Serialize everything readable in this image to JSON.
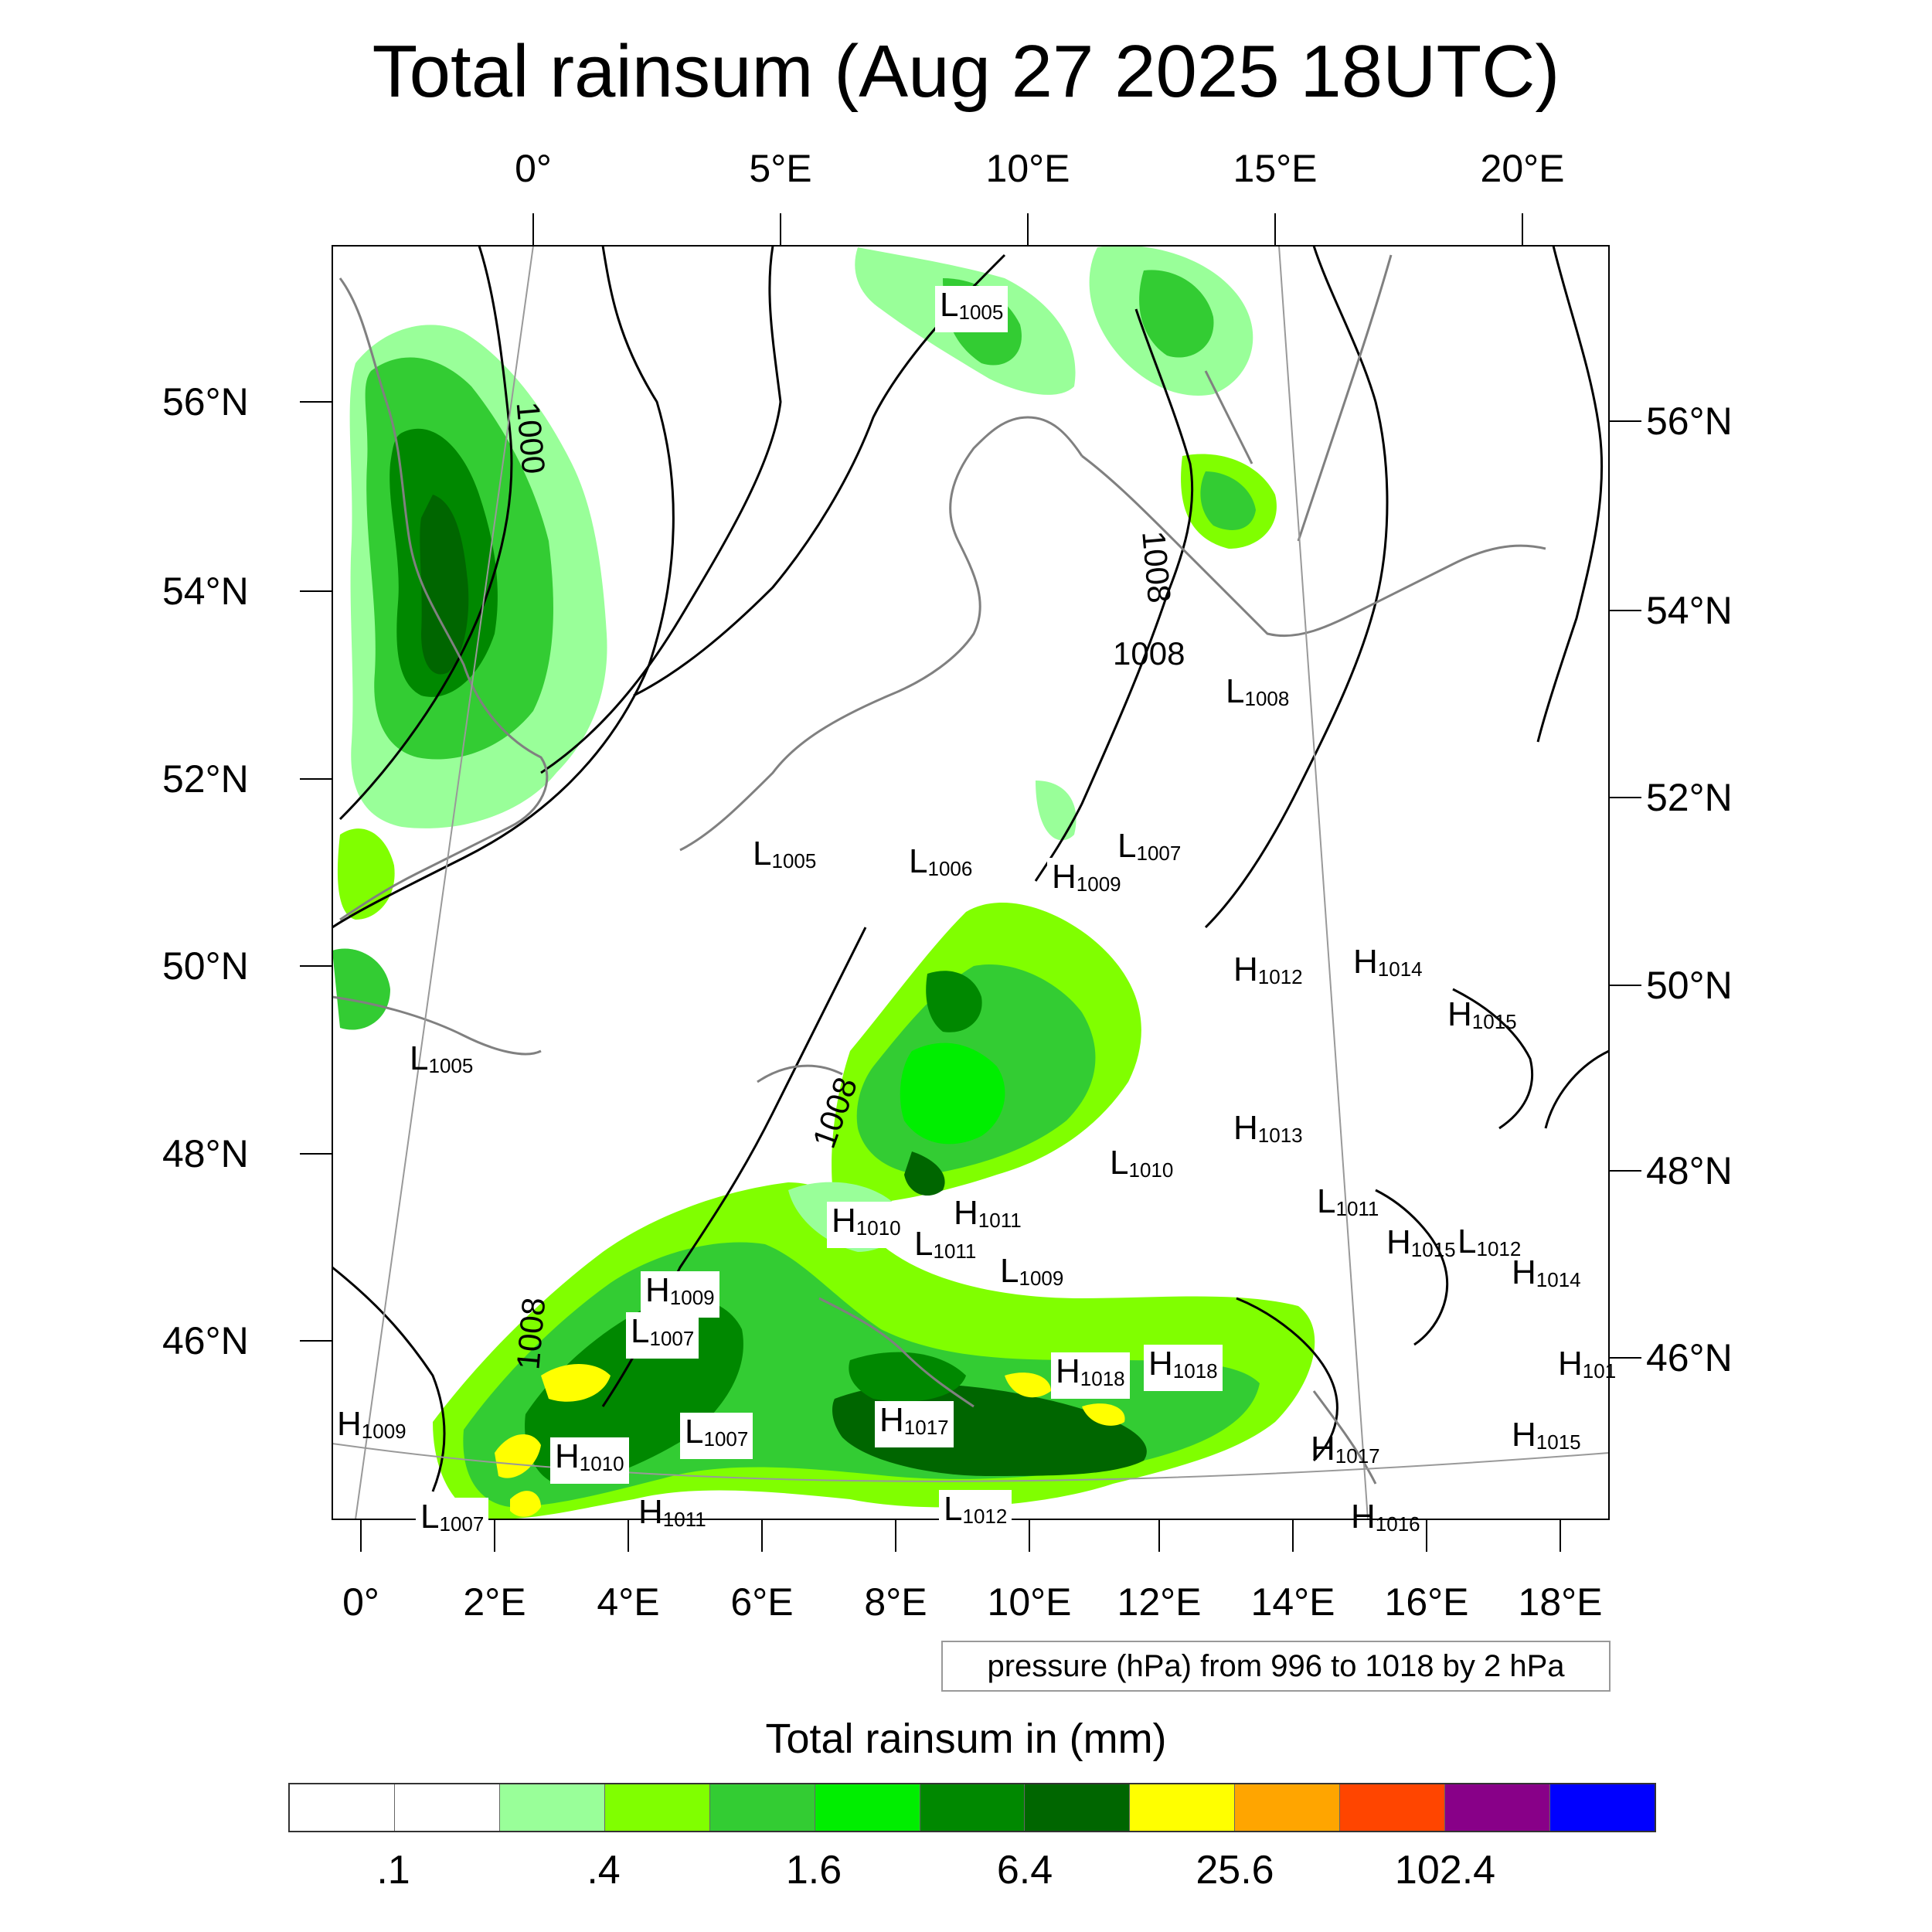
{
  "title": "Total rainsum (Aug 27 2025 18UTC)",
  "top_ticks": [
    "0°",
    "5°E",
    "10°E",
    "15°E",
    "20°E"
  ],
  "bottom_ticks": [
    "0°",
    "2°E",
    "4°E",
    "6°E",
    "8°E",
    "10°E",
    "12°E",
    "14°E",
    "16°E",
    "18°E"
  ],
  "left_ticks": [
    "56°N",
    "54°N",
    "52°N",
    "50°N",
    "48°N",
    "46°N"
  ],
  "right_ticks": [
    "56°N",
    "54°N",
    "52°N",
    "50°N",
    "48°N",
    "46°N"
  ],
  "pressure_note": "pressure (hPa) from 996 to 1018 by 2 hPa",
  "colorbar": {
    "title": "Total rainsum in (mm)",
    "colors": [
      "#ffffff",
      "#ffffff",
      "#99ff99",
      "#80ff00",
      "#33cc33",
      "#00ee00",
      "#008800",
      "#006600",
      "#ffff00",
      "#ffa500",
      "#ff4500",
      "#880088",
      "#0000ff"
    ],
    "labels": [
      ".1",
      ".4",
      "1.6",
      "6.4",
      "25.6",
      "102.4"
    ]
  },
  "isobar_labels": [
    "1000",
    "1008",
    "1008",
    "1008",
    "1008"
  ],
  "pressure_centers": [
    {
      "type": "L",
      "value": "1005"
    },
    {
      "type": "L",
      "value": "1008"
    },
    {
      "type": "L",
      "value": "1005"
    },
    {
      "type": "L",
      "value": "1006"
    },
    {
      "type": "H",
      "value": "1009"
    },
    {
      "type": "L",
      "value": "1007"
    },
    {
      "type": "H",
      "value": "1012"
    },
    {
      "type": "H",
      "value": "1014"
    },
    {
      "type": "H",
      "value": "1015"
    },
    {
      "type": "L",
      "value": "1005"
    },
    {
      "type": "H",
      "value": "1013"
    },
    {
      "type": "L",
      "value": "1010"
    },
    {
      "type": "L",
      "value": "1011"
    },
    {
      "type": "H",
      "value": "1010"
    },
    {
      "type": "L",
      "value": "1011"
    },
    {
      "type": "H",
      "value": "1011"
    },
    {
      "type": "L",
      "value": "1009"
    },
    {
      "type": "H",
      "value": "1015"
    },
    {
      "type": "L",
      "value": "1012"
    },
    {
      "type": "H",
      "value": "1014"
    },
    {
      "type": "H",
      "value": "1009"
    },
    {
      "type": "L",
      "value": "1007"
    },
    {
      "type": "H",
      "value": "1018"
    },
    {
      "type": "H",
      "value": "1018"
    },
    {
      "type": "H",
      "value": "1017"
    },
    {
      "type": "H",
      "value": "101"
    },
    {
      "type": "H",
      "value": "1009"
    },
    {
      "type": "L",
      "value": "1007"
    },
    {
      "type": "H",
      "value": "1010"
    },
    {
      "type": "H",
      "value": "1017"
    },
    {
      "type": "H",
      "value": "1015"
    },
    {
      "type": "L",
      "value": "1007"
    },
    {
      "type": "H",
      "value": "1011"
    },
    {
      "type": "L",
      "value": "1012"
    },
    {
      "type": "H",
      "value": "1016"
    }
  ]
}
